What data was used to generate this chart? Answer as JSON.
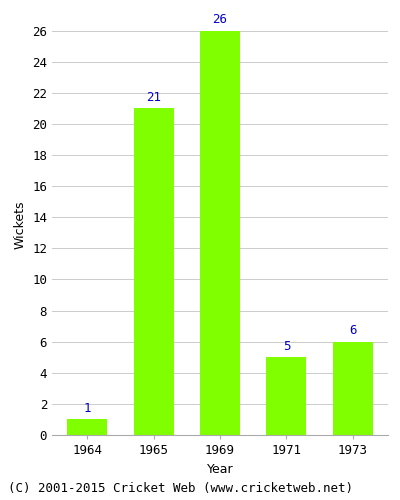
{
  "categories": [
    "1964",
    "1965",
    "1969",
    "1971",
    "1973"
  ],
  "values": [
    1,
    21,
    26,
    5,
    6
  ],
  "bar_color": "#7FFF00",
  "bar_edgecolor": "#7FFF00",
  "label_color": "#0000CC",
  "xlabel": "Year",
  "ylabel": "Wickets",
  "ylim": [
    0,
    27
  ],
  "yticks": [
    0,
    2,
    4,
    6,
    8,
    10,
    12,
    14,
    16,
    18,
    20,
    22,
    24,
    26
  ],
  "background_color": "#ffffff",
  "grid_color": "#cccccc",
  "footnote": "(C) 2001-2015 Cricket Web (www.cricketweb.net)",
  "label_fontsize": 9,
  "axis_fontsize": 9,
  "tick_fontsize": 9,
  "footnote_fontsize": 9,
  "bar_width": 0.6
}
